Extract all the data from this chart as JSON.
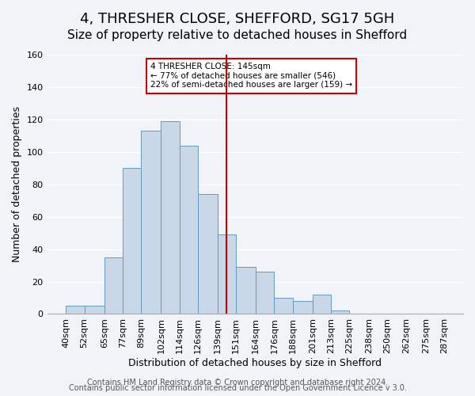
{
  "title": "4, THRESHER CLOSE, SHEFFORD, SG17 5GH",
  "subtitle": "Size of property relative to detached houses in Shefford",
  "xlabel": "Distribution of detached houses by size in Shefford",
  "ylabel": "Number of detached properties",
  "bin_edges": [
    40,
    52,
    65,
    77,
    89,
    102,
    114,
    126,
    139,
    151,
    164,
    176,
    188,
    201,
    213,
    225,
    238,
    250,
    262,
    275,
    287
  ],
  "bin_labels": [
    "40sqm",
    "52sqm",
    "65sqm",
    "77sqm",
    "89sqm",
    "102sqm",
    "114sqm",
    "126sqm",
    "139sqm",
    "151sqm",
    "164sqm",
    "176sqm",
    "188sqm",
    "201sqm",
    "213sqm",
    "225sqm",
    "238sqm",
    "250sqm",
    "262sqm",
    "275sqm",
    "287sqm"
  ],
  "counts": [
    5,
    5,
    35,
    90,
    113,
    119,
    104,
    74,
    49,
    29,
    26,
    10,
    8,
    12,
    2,
    0,
    0,
    0,
    0,
    0
  ],
  "bar_color": "#c8d8e8",
  "bar_edgecolor": "#6699bb",
  "vline_x": 145,
  "vline_color": "#cc0000",
  "annotation_box_text": "4 THRESHER CLOSE: 145sqm\n← 77% of detached houses are smaller (546)\n22% of semi-detached houses are larger (159) →",
  "annotation_box_facecolor": "#ffffff",
  "annotation_box_edgecolor": "#cc0000",
  "ylim": [
    0,
    160
  ],
  "yticks": [
    0,
    20,
    40,
    60,
    80,
    100,
    120,
    140,
    160
  ],
  "footer_line1": "Contains HM Land Registry data © Crown copyright and database right 2024.",
  "footer_line2": "Contains public sector information licensed under the Open Government Licence v 3.0.",
  "background_color": "#f0f4f8",
  "grid_color": "#ffffff",
  "title_fontsize": 13,
  "subtitle_fontsize": 11,
  "axis_label_fontsize": 9,
  "tick_fontsize": 8,
  "footer_fontsize": 7
}
